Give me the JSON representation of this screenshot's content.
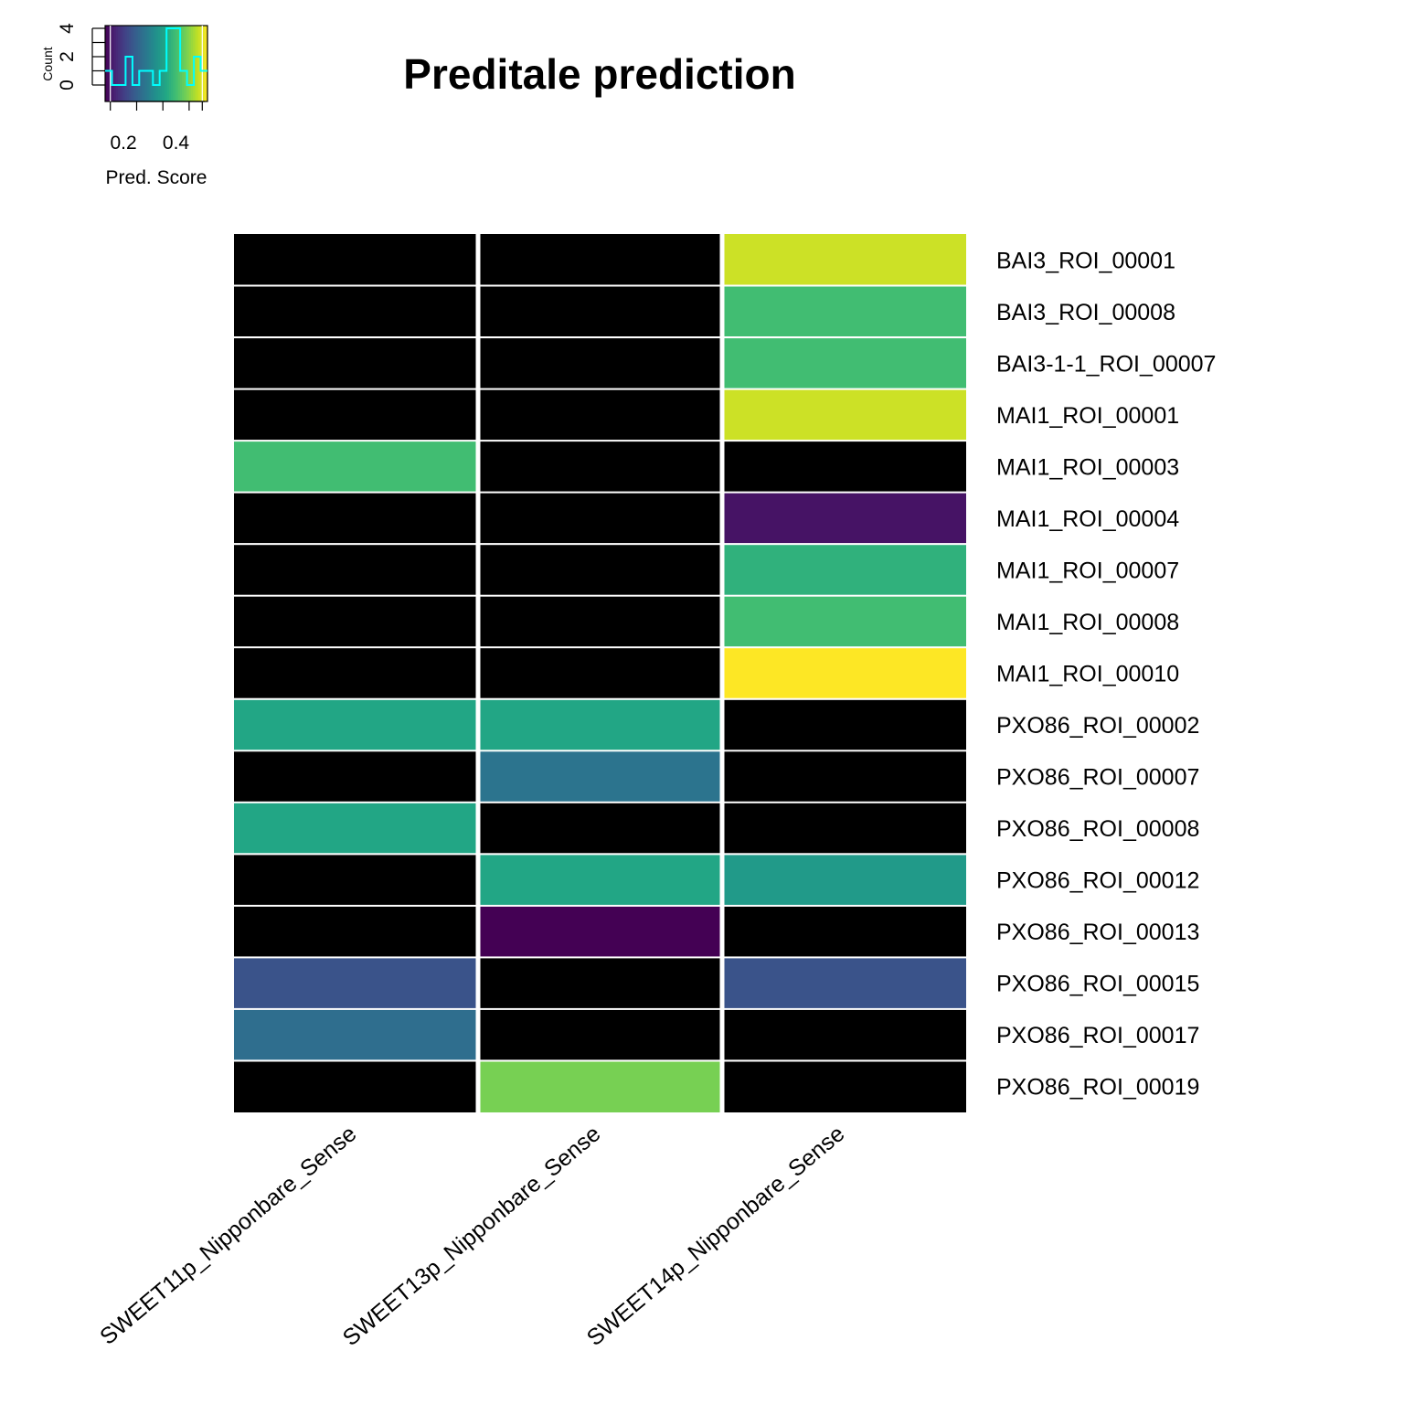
{
  "chart_data": {
    "type": "heatmap",
    "title": "Preditale prediction",
    "rows": [
      "BAI3_ROI_00001",
      "BAI3_ROI_00008",
      "BAI3-1-1_ROI_00007",
      "MAI1_ROI_00001",
      "MAI1_ROI_00003",
      "MAI1_ROI_00004",
      "MAI1_ROI_00007",
      "MAI1_ROI_00008",
      "MAI1_ROI_00010",
      "PXO86_ROI_00002",
      "PXO86_ROI_00007",
      "PXO86_ROI_00008",
      "PXO86_ROI_00012",
      "PXO86_ROI_00013",
      "PXO86_ROI_00015",
      "PXO86_ROI_00017",
      "PXO86_ROI_00019"
    ],
    "columns": [
      "SWEET11p_Nipponbare_Sense",
      "SWEET13p_Nipponbare_Sense",
      "SWEET14p_Nipponbare_Sense"
    ],
    "values": [
      [
        null,
        null,
        0.49
      ],
      [
        null,
        null,
        0.4
      ],
      [
        null,
        null,
        0.4
      ],
      [
        null,
        null,
        0.49
      ],
      [
        0.4,
        null,
        null
      ],
      [
        null,
        null,
        0.15
      ],
      [
        null,
        null,
        0.38
      ],
      [
        null,
        null,
        0.4
      ],
      [
        null,
        null,
        0.52
      ],
      [
        0.36,
        0.36,
        null
      ],
      [
        null,
        0.28,
        null
      ],
      [
        0.36,
        null,
        null
      ],
      [
        null,
        0.36,
        0.34
      ],
      [
        null,
        0.13,
        null
      ],
      [
        0.23,
        null,
        0.23
      ],
      [
        0.27,
        null,
        null
      ],
      [
        null,
        0.44,
        null
      ]
    ],
    "missing_color": "#000000",
    "colormap": "viridis",
    "color_range": [
      0.13,
      0.52
    ],
    "key": {
      "xlabel": "Pred. Score",
      "ylabel": "Count",
      "x_ticks": [
        "0.2",
        "0.4"
      ],
      "y_ticks": [
        "0",
        "2",
        "4"
      ],
      "hist_color": "#00ffff",
      "hist_counts": [
        1,
        0,
        0,
        2,
        0,
        1,
        1,
        0,
        1,
        4,
        4,
        1,
        0,
        2,
        1
      ]
    }
  }
}
